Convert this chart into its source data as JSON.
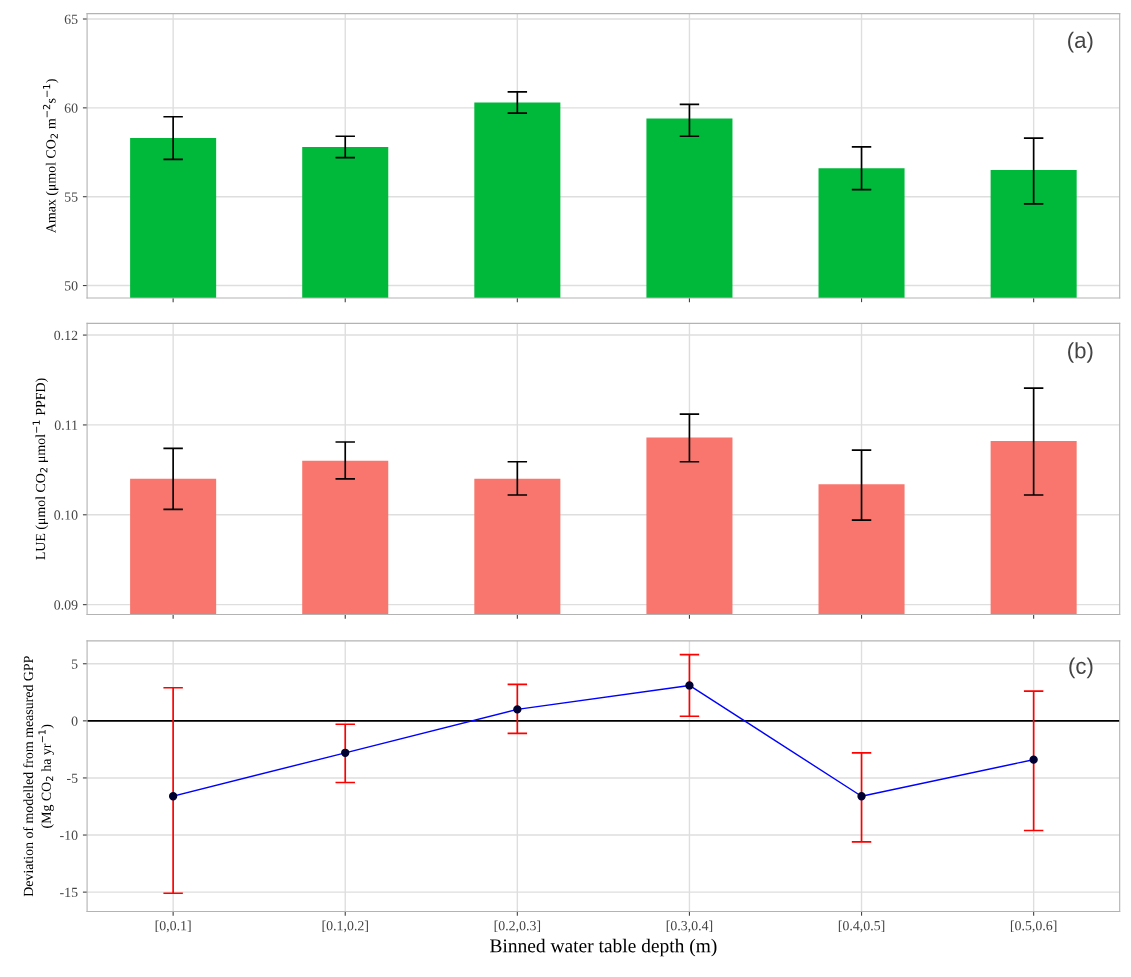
{
  "chart_data": [
    {
      "type": "bar",
      "ylabel": "Amax (μmol CO$_{2}$ m$^{−2}$s$^{−1}$)",
      "categories": [
        null,
        null,
        null,
        null,
        null,
        null
      ],
      "values": [
        58.3,
        57.8,
        60.3,
        59.4,
        56.6,
        56.5
      ],
      "color": "#00b93a",
      "errors": [
        [
          57.1,
          59.5
        ],
        [
          57.2,
          58.4
        ],
        [
          59.7,
          60.9
        ],
        [
          58.4,
          60.2
        ],
        [
          55.4,
          57.8
        ],
        [
          54.6,
          58.3
        ]
      ],
      "ylim": [
        49.3,
        65.3
      ],
      "yticks": [
        50,
        55,
        60,
        65
      ],
      "grid": true,
      "tick_labels": "y",
      "annotations": [
        "(a)"
      ]
    },
    {
      "type": "bar",
      "ylabel": "LUE (μmol CO$_{2}$ μmol$^{−1}$ PPFD)",
      "categories": [
        null,
        null,
        null,
        null,
        null,
        null
      ],
      "values": [
        0.104,
        0.106,
        0.104,
        0.1086,
        0.1034,
        0.1082
      ],
      "color": "#f8766d",
      "errors": [
        [
          0.1006,
          0.1074
        ],
        [
          0.104,
          0.1081
        ],
        [
          0.1022,
          0.1059
        ],
        [
          0.1059,
          0.1112
        ],
        [
          0.0994,
          0.1072
        ],
        [
          0.1022,
          0.1141
        ]
      ],
      "ylim": [
        0.0889,
        0.1213
      ],
      "yticks": [
        {
          "value": 0.09,
          "label": "0.09"
        },
        {
          "value": 0.1,
          "label": "0.10"
        },
        {
          "value": 0.11,
          "label": "0.11"
        },
        {
          "value": 0.12,
          "label": "0.12"
        }
      ],
      "grid": true,
      "tick_labels": "y",
      "annotations": [
        "(b)"
      ]
    },
    {
      "type": "line",
      "xlabel": "Binned water table depth (m)",
      "ylabel": "Deviation of modelled from measured GPP\n(Mg CO$_{2}$ ha yr$^{−1}$)",
      "categories": [
        "[0,0.1]",
        "[0.1,0.2]",
        "[0.2,0.3]",
        "[0.3,0.4]",
        "[0.4,0.5]",
        "[0.5,0.6]"
      ],
      "values": [
        -6.6,
        -2.8,
        1.0,
        3.1,
        -6.6,
        -3.4
      ],
      "color": "#0000ff",
      "marker": "circle",
      "errors": [
        [
          -15.1,
          2.9
        ],
        [
          -5.4,
          -0.3
        ],
        [
          -1.1,
          3.2
        ],
        [
          0.4,
          5.8
        ],
        [
          -10.6,
          -2.8
        ],
        [
          -9.6,
          2.6
        ]
      ],
      "ylim": [
        -16.7,
        7
      ],
      "yticks": [
        -15,
        -10,
        -5,
        0,
        5
      ],
      "grid": true,
      "ref_lines": [
        {
          "axis": "y",
          "value": 0,
          "color": "#000000"
        }
      ],
      "annotations": [
        "(c)"
      ]
    }
  ]
}
